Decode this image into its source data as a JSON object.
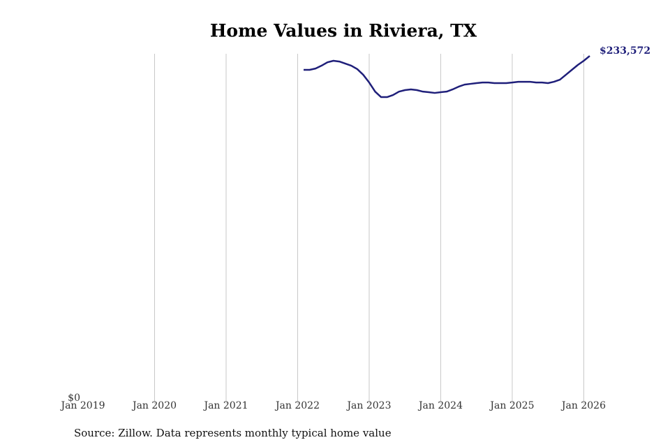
{
  "chart_data": {
    "type": "line",
    "title": "Home Values in Riviera, TX",
    "source": "Source: Zillow. Data represents monthly typical home value",
    "x": [
      "2022-02",
      "2022-03",
      "2022-04",
      "2022-05",
      "2022-06",
      "2022-07",
      "2022-08",
      "2022-09",
      "2022-10",
      "2022-11",
      "2022-12",
      "2023-01",
      "2023-02",
      "2023-03",
      "2023-04",
      "2023-05",
      "2023-06",
      "2023-07",
      "2023-08",
      "2023-09",
      "2023-10",
      "2023-11",
      "2023-12",
      "2024-01",
      "2024-02",
      "2024-03",
      "2024-04",
      "2024-05",
      "2024-06",
      "2024-07",
      "2024-08",
      "2024-09",
      "2024-10",
      "2024-11",
      "2024-12",
      "2025-01",
      "2025-02",
      "2025-03",
      "2025-04",
      "2025-05",
      "2025-06",
      "2025-07",
      "2025-08",
      "2025-09",
      "2025-10",
      "2025-11",
      "2025-12",
      "2026-01",
      "2026-02"
    ],
    "series": [
      {
        "name": "Riviera, TX",
        "color": "#1f1f7a",
        "values": [
          224200,
          224200,
          225100,
          227000,
          229300,
          230300,
          229800,
          228400,
          227000,
          224700,
          220900,
          215700,
          209600,
          205900,
          205900,
          207300,
          209600,
          210600,
          211100,
          210600,
          209600,
          209200,
          208700,
          209200,
          209600,
          211100,
          212900,
          214300,
          214800,
          215300,
          215700,
          215700,
          215300,
          215300,
          215300,
          215700,
          216200,
          216200,
          216200,
          215700,
          215700,
          215300,
          216200,
          217600,
          220900,
          224200,
          227500,
          230300,
          233572
        ],
        "value_labels": [
          null,
          null,
          null,
          null,
          null,
          null,
          null,
          null,
          null,
          null,
          null,
          null,
          null,
          null,
          null,
          null,
          null,
          null,
          null,
          null,
          null,
          null,
          null,
          null,
          null,
          null,
          null,
          null,
          null,
          null,
          null,
          null,
          null,
          null,
          null,
          null,
          null,
          null,
          null,
          null,
          null,
          null,
          null,
          null,
          null,
          null,
          null,
          null,
          "$233,572"
        ]
      }
    ],
    "xlim": [
      "2019-01",
      "2026-02"
    ],
    "xticks": [
      {
        "value": "2019-01",
        "label": "Jan 2019"
      },
      {
        "value": "2020-01",
        "label": "Jan 2020"
      },
      {
        "value": "2021-01",
        "label": "Jan 2021"
      },
      {
        "value": "2022-01",
        "label": "Jan 2022"
      },
      {
        "value": "2023-01",
        "label": "Jan 2023"
      },
      {
        "value": "2024-01",
        "label": "Jan 2024"
      },
      {
        "value": "2025-01",
        "label": "Jan 2025"
      },
      {
        "value": "2026-01",
        "label": "Jan 2026"
      }
    ],
    "ylim": [
      0,
      235000
    ],
    "yticks": [
      {
        "value": 0,
        "label": "$0"
      }
    ],
    "grid": true
  }
}
